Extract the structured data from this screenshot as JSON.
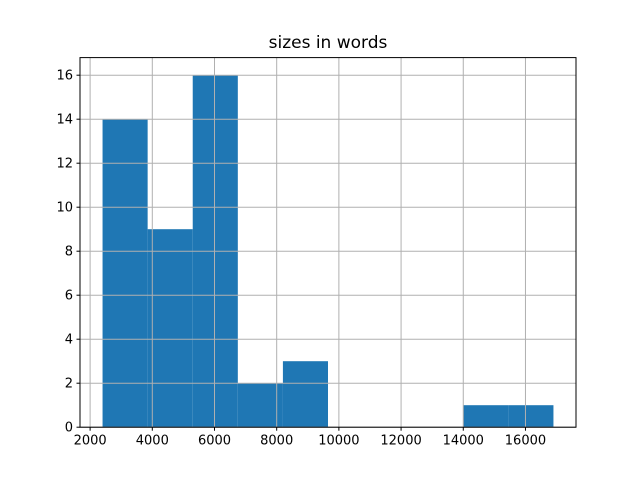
{
  "figure": {
    "title": "sizes in words"
  },
  "chart_data": {
    "type": "bar",
    "subtype": "histogram",
    "title": "sizes in words",
    "xlabel": "",
    "ylabel": "",
    "bin_edges": [
      2400,
      3850,
      5300,
      6750,
      8200,
      9650,
      11100,
      12550,
      14000,
      15450,
      16900
    ],
    "counts": [
      14,
      9,
      16,
      2,
      3,
      0,
      0,
      0,
      1,
      1
    ],
    "xticks": [
      2000,
      4000,
      6000,
      8000,
      10000,
      12000,
      14000,
      16000
    ],
    "xtick_labels": [
      "2000",
      "4000",
      "6000",
      "8000",
      "10000",
      "12000",
      "14000",
      "16000"
    ],
    "yticks": [
      0,
      2,
      4,
      6,
      8,
      10,
      12,
      14,
      16
    ],
    "ytick_labels": [
      "0",
      "2",
      "4",
      "6",
      "8",
      "10",
      "12",
      "14",
      "16"
    ],
    "xlim": [
      1675,
      17625
    ],
    "ylim": [
      0,
      16.8
    ],
    "grid": true,
    "legend": false,
    "grid_above_bars": true,
    "colors": {
      "bar": "#1f77b4",
      "grid": "#b0b0b0",
      "spine": "#000000",
      "background": "#ffffff",
      "text": "#000000"
    }
  }
}
